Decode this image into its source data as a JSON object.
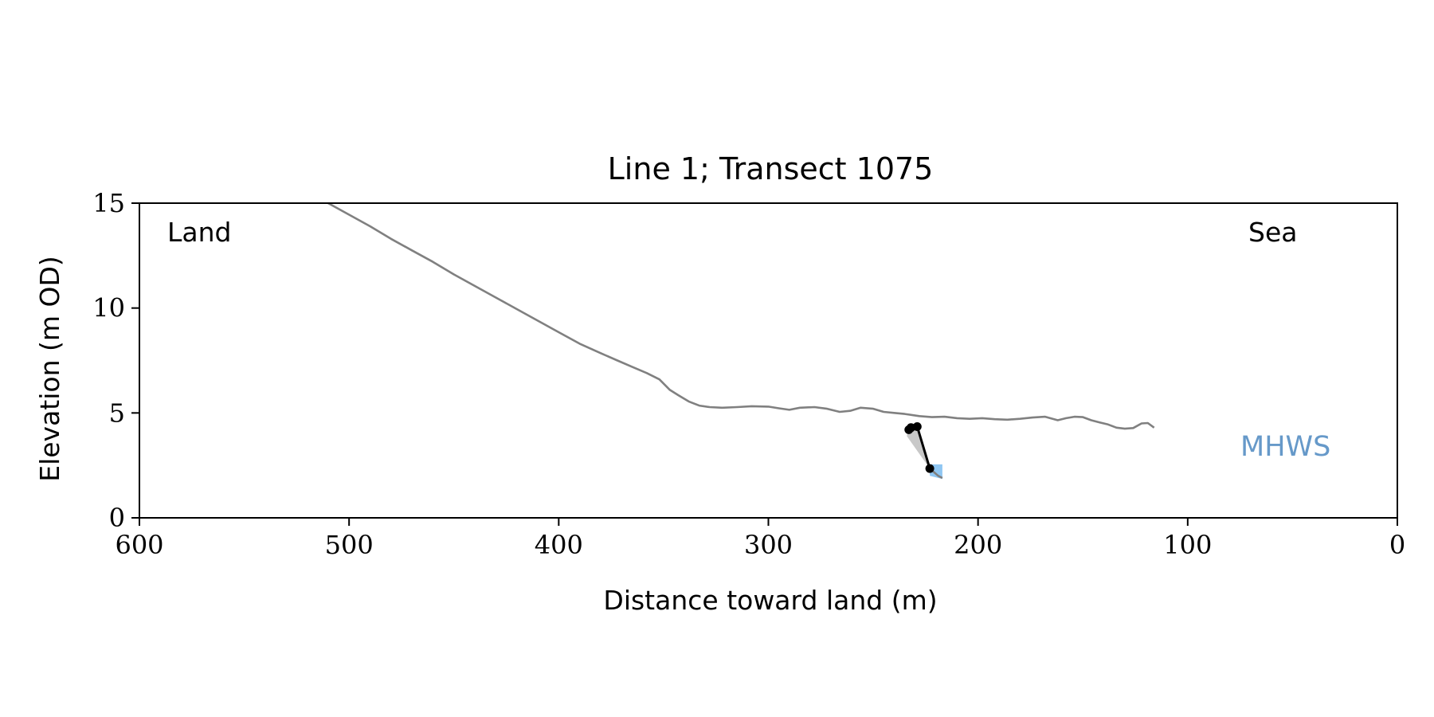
{
  "chart_data": {
    "type": "line",
    "title": "Line 1; Transect 1075",
    "xlabel": "Distance toward land (m)",
    "ylabel": "Elevation (m OD)",
    "xlim": [
      600,
      0
    ],
    "ylim": [
      0,
      15
    ],
    "x_ticks": [
      "600",
      "500",
      "400",
      "300",
      "200",
      "100",
      "0"
    ],
    "y_ticks": [
      "0",
      "5",
      "10",
      "15"
    ],
    "annotations": {
      "land": "Land",
      "sea": "Sea",
      "mhws": "MHWS"
    },
    "colors": {
      "profile": "#808080",
      "highlight": "#000000",
      "mhws_text": "#6699c9",
      "mhws_fill": "#8fc6f2",
      "shade": "#c8c8c8"
    },
    "grid": false,
    "profile": [
      [
        510,
        15.0
      ],
      [
        500,
        14.45
      ],
      [
        490,
        13.9
      ],
      [
        480,
        13.3
      ],
      [
        470,
        12.75
      ],
      [
        460,
        12.2
      ],
      [
        450,
        11.6
      ],
      [
        440,
        11.05
      ],
      [
        430,
        10.5
      ],
      [
        420,
        9.95
      ],
      [
        410,
        9.4
      ],
      [
        400,
        8.85
      ],
      [
        390,
        8.3
      ],
      [
        380,
        7.85
      ],
      [
        372,
        7.5
      ],
      [
        365,
        7.2
      ],
      [
        358,
        6.9
      ],
      [
        352,
        6.6
      ],
      [
        347,
        6.1
      ],
      [
        343,
        5.85
      ],
      [
        338,
        5.55
      ],
      [
        333,
        5.35
      ],
      [
        328,
        5.28
      ],
      [
        322,
        5.25
      ],
      [
        315,
        5.28
      ],
      [
        308,
        5.32
      ],
      [
        300,
        5.3
      ],
      [
        295,
        5.22
      ],
      [
        290,
        5.15
      ],
      [
        285,
        5.25
      ],
      [
        278,
        5.28
      ],
      [
        272,
        5.2
      ],
      [
        266,
        5.05
      ],
      [
        261,
        5.1
      ],
      [
        256,
        5.25
      ],
      [
        250,
        5.2
      ],
      [
        245,
        5.05
      ],
      [
        240,
        5.0
      ],
      [
        235,
        4.95
      ],
      [
        228,
        4.85
      ],
      [
        222,
        4.8
      ],
      [
        216,
        4.82
      ],
      [
        210,
        4.75
      ],
      [
        204,
        4.72
      ],
      [
        198,
        4.75
      ],
      [
        192,
        4.7
      ],
      [
        186,
        4.68
      ],
      [
        180,
        4.72
      ],
      [
        174,
        4.78
      ],
      [
        168,
        4.82
      ],
      [
        162,
        4.65
      ],
      [
        158,
        4.75
      ],
      [
        154,
        4.82
      ],
      [
        150,
        4.8
      ],
      [
        146,
        4.65
      ],
      [
        142,
        4.55
      ],
      [
        138,
        4.45
      ],
      [
        134,
        4.3
      ],
      [
        130,
        4.25
      ],
      [
        126,
        4.28
      ],
      [
        122,
        4.5
      ],
      [
        119,
        4.52
      ],
      [
        116,
        4.3
      ]
    ],
    "highlight_points": [
      [
        233,
        4.2
      ],
      [
        232,
        4.3
      ],
      [
        229,
        4.35
      ],
      [
        223,
        2.35
      ]
    ],
    "tail": [
      [
        223,
        2.35
      ],
      [
        219,
        2.0
      ],
      [
        217,
        1.9
      ]
    ]
  }
}
